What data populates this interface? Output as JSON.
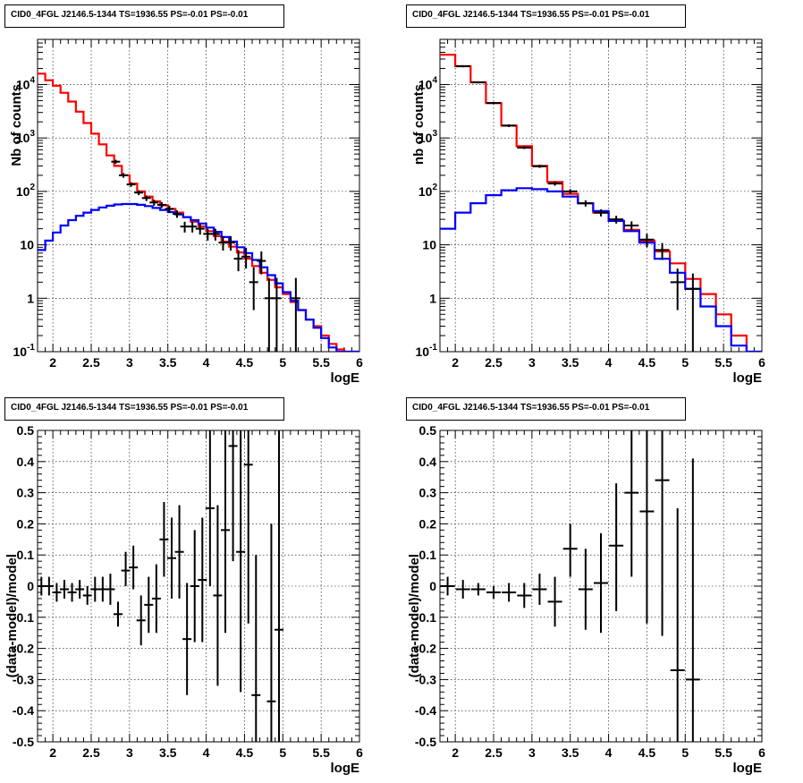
{
  "chart_data": [
    {
      "type": "line",
      "title": "CID0_4FGL J2146.5-1344 TS=1936.55 PS=-0.01 PS=-0.01",
      "xlabel": "logE",
      "ylabel": "Nb of counts",
      "xlim": [
        1.8,
        6.0
      ],
      "ylim": [
        0.1,
        70000
      ],
      "yscale": "log",
      "grid": true,
      "xticks": [
        "2",
        "2.5",
        "3",
        "3.5",
        "4",
        "4.5",
        "5",
        "5.5",
        "6"
      ],
      "yticks": [
        "10^-1",
        "1",
        "10",
        "10^2",
        "10^3",
        "10^4"
      ],
      "bin_edges": [
        1.8,
        1.9,
        2.0,
        2.1,
        2.2,
        2.3,
        2.4,
        2.5,
        2.6,
        2.7,
        2.8,
        2.9,
        3.0,
        3.1,
        3.2,
        3.3,
        3.4,
        3.5,
        3.6,
        3.7,
        3.8,
        3.9,
        4.0,
        4.1,
        4.2,
        4.3,
        4.4,
        4.5,
        4.6,
        4.7,
        4.8,
        4.9,
        5.0,
        5.1,
        5.2,
        5.3,
        5.4,
        5.5,
        5.6,
        5.7,
        5.8,
        5.9,
        6.0
      ],
      "series": [
        {
          "color": "#ff0000",
          "values": [
            16000,
            12000,
            9500,
            7000,
            4800,
            3100,
            1900,
            1200,
            760,
            470,
            300,
            200,
            140,
            100,
            80,
            65,
            55,
            47,
            40,
            33,
            27,
            22,
            18,
            14.5,
            11.5,
            9.2,
            7.2,
            5.5,
            4.0,
            3.0,
            2.2,
            1.6,
            1.2,
            0.85,
            0.6,
            0.4,
            0.3,
            0.2,
            0.14,
            0.11,
            0.1,
            0.1
          ]
        },
        {
          "color": "#0000ff",
          "values": [
            8,
            12,
            17,
            23,
            29,
            35,
            40,
            45,
            50,
            54,
            57,
            58,
            58,
            56,
            53,
            49,
            45,
            41,
            37,
            33,
            29,
            25,
            21,
            17.5,
            14,
            11.5,
            9,
            7,
            5.2,
            3.8,
            2.7,
            1.9,
            1.3,
            0.9,
            0.6,
            0.4,
            0.28,
            0.18,
            0.12,
            0.1,
            0.1,
            0.1
          ]
        }
      ],
      "points": [
        {
          "x": 2.82,
          "y": 360,
          "ylo": 330,
          "yhi": 390
        },
        {
          "x": 2.92,
          "y": 200,
          "ylo": 180,
          "yhi": 220
        },
        {
          "x": 3.02,
          "y": 135,
          "ylo": 122,
          "yhi": 148
        },
        {
          "x": 3.12,
          "y": 95,
          "ylo": 85,
          "yhi": 105
        },
        {
          "x": 3.22,
          "y": 75,
          "ylo": 66,
          "yhi": 84
        },
        {
          "x": 3.32,
          "y": 62,
          "ylo": 54,
          "yhi": 70
        },
        {
          "x": 3.42,
          "y": 56,
          "ylo": 49,
          "yhi": 63
        },
        {
          "x": 3.52,
          "y": 47,
          "ylo": 40,
          "yhi": 54
        },
        {
          "x": 3.62,
          "y": 38,
          "ylo": 32,
          "yhi": 44
        },
        {
          "x": 3.72,
          "y": 22,
          "ylo": 17,
          "yhi": 27
        },
        {
          "x": 3.82,
          "y": 22,
          "ylo": 17,
          "yhi": 27
        },
        {
          "x": 3.92,
          "y": 20,
          "ylo": 15.5,
          "yhi": 24.5
        },
        {
          "x": 4.02,
          "y": 16,
          "ylo": 12,
          "yhi": 20
        },
        {
          "x": 4.12,
          "y": 16,
          "ylo": 12,
          "yhi": 20
        },
        {
          "x": 4.22,
          "y": 11,
          "ylo": 7.8,
          "yhi": 14.5
        },
        {
          "x": 4.32,
          "y": 11,
          "ylo": 7.8,
          "yhi": 14.5
        },
        {
          "x": 4.42,
          "y": 5.5,
          "ylo": 3.2,
          "yhi": 8
        },
        {
          "x": 4.52,
          "y": 6,
          "ylo": 3.6,
          "yhi": 8.8
        },
        {
          "x": 4.62,
          "y": 2,
          "ylo": 0.6,
          "yhi": 3.8
        },
        {
          "x": 4.72,
          "y": 5,
          "ylo": 2.8,
          "yhi": 7.5
        },
        {
          "x": 4.82,
          "y": 1,
          "ylo": 0.1,
          "yhi": 2.4
        },
        {
          "x": 4.92,
          "y": 1,
          "ylo": 0.1,
          "yhi": 2.4
        },
        {
          "x": 5.17,
          "y": 1,
          "ylo": 0.1,
          "yhi": 2.4
        }
      ]
    },
    {
      "type": "line",
      "title": "CID0_4FGL J2146.5-1344 TS=1936.55 PS=-0.01 PS=-0.01",
      "xlabel": "logE",
      "ylabel": "nb of counts",
      "xlim": [
        1.8,
        6.0
      ],
      "ylim": [
        0.1,
        70000
      ],
      "yscale": "log",
      "grid": true,
      "xticks": [
        "2",
        "2.5",
        "3",
        "3.5",
        "4",
        "4.5",
        "5",
        "5.5",
        "6"
      ],
      "yticks": [
        "10^-1",
        "1",
        "10",
        "10^2",
        "10^3",
        "10^4"
      ],
      "bin_edges": [
        1.8,
        2.0,
        2.2,
        2.4,
        2.6,
        2.8,
        3.0,
        3.2,
        3.4,
        3.6,
        3.8,
        4.0,
        4.2,
        4.4,
        4.6,
        4.8,
        5.0,
        5.2,
        5.4,
        5.6,
        5.8,
        6.0
      ],
      "series": [
        {
          "color": "#ff0000",
          "values": [
            36000,
            22000,
            11000,
            4500,
            1700,
            700,
            300,
            150,
            90,
            60,
            40,
            28,
            19,
            12,
            7.5,
            4.5,
            2.3,
            1.2,
            0.5,
            0.2,
            0.1
          ]
        },
        {
          "color": "#0000ff",
          "values": [
            20,
            40,
            60,
            85,
            105,
            115,
            110,
            100,
            80,
            60,
            43,
            28,
            18,
            11,
            5.5,
            3.0,
            1.5,
            0.7,
            0.3,
            0.13,
            0.1
          ]
        }
      ],
      "points": [
        {
          "x": 2.1,
          "y": 22000,
          "ylo": 21000,
          "yhi": 23000
        },
        {
          "x": 2.3,
          "y": 11000,
          "ylo": 10500,
          "yhi": 11500
        },
        {
          "x": 2.5,
          "y": 4500,
          "ylo": 4300,
          "yhi": 4700
        },
        {
          "x": 2.7,
          "y": 1700,
          "ylo": 1600,
          "yhi": 1800
        },
        {
          "x": 2.9,
          "y": 660,
          "ylo": 620,
          "yhi": 700
        },
        {
          "x": 3.1,
          "y": 295,
          "ylo": 275,
          "yhi": 315
        },
        {
          "x": 3.3,
          "y": 140,
          "ylo": 128,
          "yhi": 152
        },
        {
          "x": 3.5,
          "y": 100,
          "ylo": 90,
          "yhi": 110
        },
        {
          "x": 3.7,
          "y": 60,
          "ylo": 52,
          "yhi": 68
        },
        {
          "x": 3.9,
          "y": 40,
          "ylo": 34,
          "yhi": 46
        },
        {
          "x": 4.1,
          "y": 30,
          "ylo": 25,
          "yhi": 35
        },
        {
          "x": 4.3,
          "y": 23,
          "ylo": 18.5,
          "yhi": 27.5
        },
        {
          "x": 4.5,
          "y": 12.5,
          "ylo": 9,
          "yhi": 16
        },
        {
          "x": 4.7,
          "y": 8,
          "ylo": 5.2,
          "yhi": 10.8
        },
        {
          "x": 4.9,
          "y": 2,
          "ylo": 0.6,
          "yhi": 3.6
        },
        {
          "x": 5.1,
          "y": 1.5,
          "ylo": 0.1,
          "yhi": 2.9
        }
      ]
    },
    {
      "type": "scatter",
      "title": "CID0_4FGL J2146.5-1344 TS=1936.55 PS=-0.01 PS=-0.01",
      "xlabel": "logE",
      "ylabel": "(data-model)/model",
      "xlim": [
        1.8,
        6.0
      ],
      "ylim": [
        -0.5,
        0.5
      ],
      "grid": true,
      "xticks": [
        "2",
        "2.5",
        "3",
        "3.5",
        "4",
        "4.5",
        "5",
        "5.5",
        "6"
      ],
      "yticks": [
        "-0.5",
        "-0.4",
        "-0.3",
        "-0.2",
        "-0.1",
        "0",
        "0.1",
        "0.2",
        "0.3",
        "0.4",
        "0.5"
      ],
      "points": [
        {
          "x": 1.85,
          "y": 0.0,
          "ylo": -0.03,
          "yhi": 0.03
        },
        {
          "x": 1.95,
          "y": 0.0,
          "ylo": -0.03,
          "yhi": 0.03
        },
        {
          "x": 2.05,
          "y": -0.02,
          "ylo": -0.05,
          "yhi": 0.01
        },
        {
          "x": 2.15,
          "y": -0.01,
          "ylo": -0.04,
          "yhi": 0.02
        },
        {
          "x": 2.25,
          "y": -0.02,
          "ylo": -0.05,
          "yhi": 0.01
        },
        {
          "x": 2.35,
          "y": -0.01,
          "ylo": -0.04,
          "yhi": 0.02
        },
        {
          "x": 2.45,
          "y": -0.03,
          "ylo": -0.06,
          "yhi": 0.0
        },
        {
          "x": 2.55,
          "y": -0.01,
          "ylo": -0.05,
          "yhi": 0.03
        },
        {
          "x": 2.65,
          "y": -0.01,
          "ylo": -0.05,
          "yhi": 0.03
        },
        {
          "x": 2.75,
          "y": -0.01,
          "ylo": -0.06,
          "yhi": 0.04
        },
        {
          "x": 2.85,
          "y": -0.09,
          "ylo": -0.13,
          "yhi": -0.05
        },
        {
          "x": 2.95,
          "y": 0.05,
          "ylo": 0.0,
          "yhi": 0.11
        },
        {
          "x": 3.05,
          "y": 0.06,
          "ylo": -0.01,
          "yhi": 0.13
        },
        {
          "x": 3.15,
          "y": -0.11,
          "ylo": -0.19,
          "yhi": -0.03
        },
        {
          "x": 3.25,
          "y": -0.06,
          "ylo": -0.15,
          "yhi": 0.03
        },
        {
          "x": 3.35,
          "y": -0.04,
          "ylo": -0.15,
          "yhi": 0.07
        },
        {
          "x": 3.45,
          "y": 0.15,
          "ylo": 0.03,
          "yhi": 0.27
        },
        {
          "x": 3.55,
          "y": 0.09,
          "ylo": -0.04,
          "yhi": 0.22
        },
        {
          "x": 3.65,
          "y": 0.11,
          "ylo": -0.04,
          "yhi": 0.26
        },
        {
          "x": 3.75,
          "y": -0.17,
          "ylo": -0.35,
          "yhi": 0.01
        },
        {
          "x": 3.85,
          "y": 0.0,
          "ylo": -0.18,
          "yhi": 0.18
        },
        {
          "x": 3.95,
          "y": 0.02,
          "ylo": -0.18,
          "yhi": 0.22
        },
        {
          "x": 4.05,
          "y": 0.25,
          "ylo": 0.0,
          "yhi": 0.5
        },
        {
          "x": 4.15,
          "y": -0.03,
          "ylo": -0.32,
          "yhi": 0.26
        },
        {
          "x": 4.25,
          "y": 0.18,
          "ylo": -0.15,
          "yhi": 0.5
        },
        {
          "x": 4.35,
          "y": 0.45,
          "ylo": 0.08,
          "yhi": 0.5
        },
        {
          "x": 4.45,
          "y": 0.11,
          "ylo": -0.34,
          "yhi": 0.5
        },
        {
          "x": 4.55,
          "y": 0.39,
          "ylo": -0.12,
          "yhi": 0.5
        },
        {
          "x": 4.65,
          "y": -0.35,
          "ylo": -0.5,
          "yhi": 0.1
        },
        {
          "x": 4.85,
          "y": -0.37,
          "ylo": -0.5,
          "yhi": 0.2
        },
        {
          "x": 4.95,
          "y": -0.14,
          "ylo": -0.5,
          "yhi": 0.5
        }
      ]
    },
    {
      "type": "scatter",
      "title": "CID0_4FGL J2146.5-1344 TS=1936.55 PS=-0.01 PS=-0.01",
      "xlabel": "logE",
      "ylabel": "(data-model)/model",
      "xlim": [
        1.8,
        6.0
      ],
      "ylim": [
        -0.5,
        0.5
      ],
      "grid": true,
      "xticks": [
        "2",
        "2.5",
        "3",
        "3.5",
        "4",
        "4.5",
        "5",
        "5.5",
        "6"
      ],
      "yticks": [
        "-0.5",
        "-0.4",
        "-0.3",
        "-0.2",
        "-0.1",
        "0",
        "0.1",
        "0.2",
        "0.3",
        "0.4",
        "0.5"
      ],
      "points": [
        {
          "x": 1.9,
          "y": 0.0,
          "ylo": -0.03,
          "yhi": 0.03
        },
        {
          "x": 2.1,
          "y": -0.01,
          "ylo": -0.04,
          "yhi": 0.02
        },
        {
          "x": 2.3,
          "y": -0.01,
          "ylo": -0.03,
          "yhi": 0.01
        },
        {
          "x": 2.5,
          "y": -0.02,
          "ylo": -0.04,
          "yhi": 0.0
        },
        {
          "x": 2.7,
          "y": -0.02,
          "ylo": -0.05,
          "yhi": 0.01
        },
        {
          "x": 2.9,
          "y": -0.03,
          "ylo": -0.07,
          "yhi": 0.01
        },
        {
          "x": 3.1,
          "y": -0.01,
          "ylo": -0.06,
          "yhi": 0.04
        },
        {
          "x": 3.3,
          "y": -0.05,
          "ylo": -0.13,
          "yhi": 0.03
        },
        {
          "x": 3.5,
          "y": 0.12,
          "ylo": 0.03,
          "yhi": 0.2
        },
        {
          "x": 3.7,
          "y": -0.01,
          "ylo": -0.14,
          "yhi": 0.12
        },
        {
          "x": 3.9,
          "y": 0.01,
          "ylo": -0.15,
          "yhi": 0.17
        },
        {
          "x": 4.1,
          "y": 0.13,
          "ylo": -0.08,
          "yhi": 0.33
        },
        {
          "x": 4.3,
          "y": 0.3,
          "ylo": 0.03,
          "yhi": 0.5
        },
        {
          "x": 4.5,
          "y": 0.24,
          "ylo": -0.12,
          "yhi": 0.5
        },
        {
          "x": 4.7,
          "y": 0.34,
          "ylo": -0.16,
          "yhi": 0.5
        },
        {
          "x": 4.9,
          "y": -0.27,
          "ylo": -0.5,
          "yhi": 0.25
        },
        {
          "x": 5.1,
          "y": -0.3,
          "ylo": -0.5,
          "yhi": 0.41
        }
      ]
    }
  ]
}
